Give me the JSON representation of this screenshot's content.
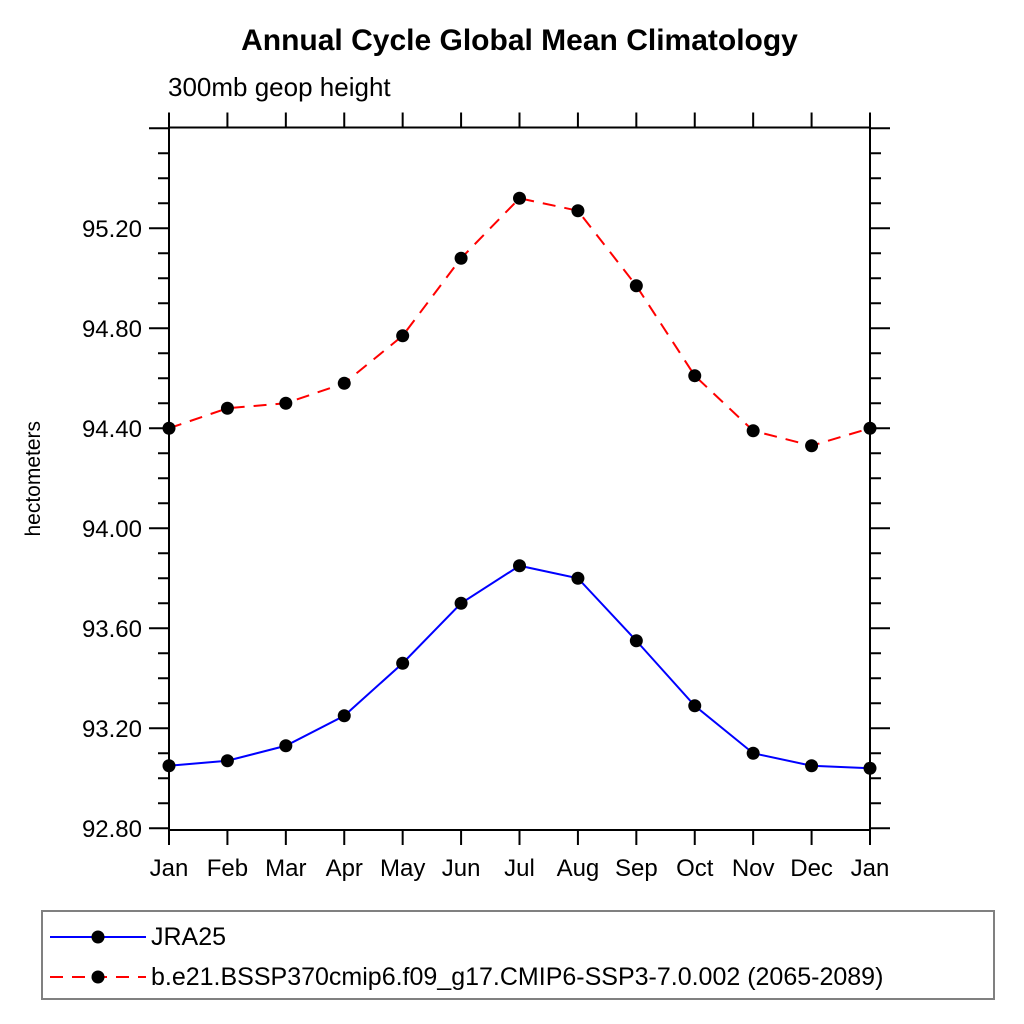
{
  "chart_data": {
    "type": "line",
    "title": "Annual Cycle Global Mean Climatology",
    "subtitle": "300mb geop height",
    "left_axis_label": "hectometers",
    "categories": [
      "Jan",
      "Feb",
      "Mar",
      "Apr",
      "May",
      "Jun",
      "Jul",
      "Aug",
      "Sep",
      "Oct",
      "Nov",
      "Dec",
      "Jan"
    ],
    "series": [
      {
        "name": "JRA25",
        "color": "#0000ff",
        "line_style": "solid",
        "marker": "black-filled-circle",
        "values": [
          93.05,
          93.07,
          93.13,
          93.25,
          93.46,
          93.7,
          93.85,
          93.8,
          93.55,
          93.29,
          93.1,
          93.05,
          93.04
        ]
      },
      {
        "name": "b.e21.BSSP370cmip6.f09_g17.CMIP6-SSP3-7.0.002 (2065-2089)",
        "color": "#ff0000",
        "line_style": "dashed",
        "marker": "black-filled-circle",
        "values": [
          94.4,
          94.48,
          94.5,
          94.58,
          94.77,
          95.08,
          95.32,
          95.27,
          94.97,
          94.61,
          94.39,
          94.33,
          94.4
        ]
      }
    ],
    "ylim": [
      92.793,
      95.603
    ],
    "ytick_labels": [
      "92.80",
      "93.20",
      "93.60",
      "94.00",
      "94.40",
      "94.80",
      "95.20"
    ],
    "ytick_major_step": 0.4,
    "ytick_minor_step": 0.1,
    "xtick_per_month": true,
    "grid": false,
    "legend_position": "bottom-left-box",
    "legend_border_color": "#808080",
    "marker_color": "#000000"
  }
}
